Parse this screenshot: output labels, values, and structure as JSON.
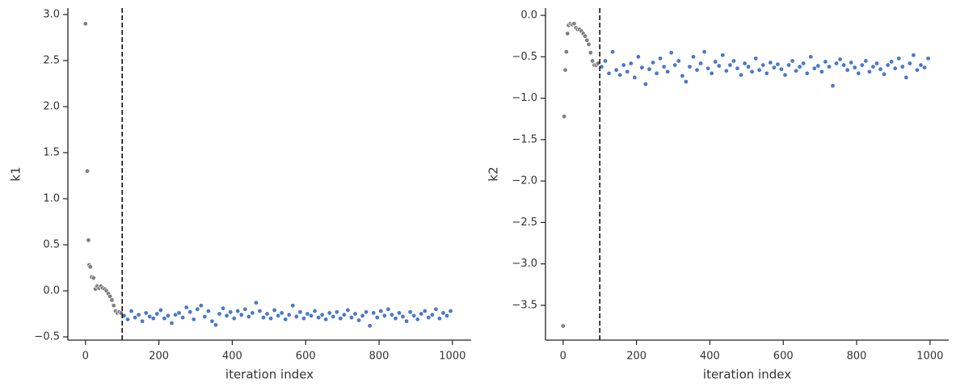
{
  "chart_data": [
    {
      "type": "scatter",
      "xlabel": "iteration index",
      "ylabel": "k1",
      "xlim": [
        -48,
        1051
      ],
      "ylim": [
        -0.535,
        3.07
      ],
      "xticks": [
        0,
        200,
        400,
        600,
        800,
        1000
      ],
      "yticks": [
        {
          "value": -0.5,
          "label": "−0.5"
        },
        {
          "value": 0,
          "label": "0.0"
        },
        0.5,
        {
          "value": 1,
          "label": "1.0"
        },
        1.5,
        {
          "value": 2,
          "label": "2.0"
        },
        2.5,
        {
          "value": 3,
          "label": "3.0"
        }
      ],
      "vline": 100,
      "vline_color": "#111111",
      "series": [
        {
          "color": "#7f7f7f",
          "x": [
            0,
            5,
            8,
            10,
            13,
            17,
            22,
            27,
            32,
            37,
            42,
            47,
            52,
            57,
            62,
            67,
            72,
            77,
            82,
            87,
            92,
            97
          ],
          "values": [
            2.9,
            1.3,
            0.55,
            0.28,
            0.26,
            0.15,
            0.14,
            0.02,
            0.05,
            0.03,
            0.05,
            0.03,
            0.02,
            0.0,
            -0.03,
            -0.06,
            -0.1,
            -0.16,
            -0.22,
            -0.24,
            -0.23,
            -0.24
          ]
        },
        {
          "color": "#4878cf",
          "x": [
            105,
            115,
            125,
            135,
            145,
            155,
            165,
            175,
            185,
            195,
            205,
            215,
            225,
            235,
            245,
            255,
            265,
            275,
            285,
            295,
            305,
            315,
            325,
            335,
            345,
            355,
            365,
            375,
            385,
            395,
            405,
            415,
            425,
            435,
            445,
            455,
            465,
            475,
            485,
            495,
            505,
            515,
            525,
            535,
            545,
            555,
            565,
            575,
            585,
            595,
            605,
            615,
            625,
            635,
            645,
            655,
            665,
            675,
            685,
            695,
            705,
            715,
            725,
            735,
            745,
            755,
            765,
            775,
            785,
            795,
            805,
            815,
            825,
            835,
            845,
            855,
            865,
            875,
            885,
            895,
            905,
            915,
            925,
            935,
            945,
            955,
            965,
            975,
            985,
            995
          ],
          "values": [
            -0.27,
            -0.31,
            -0.22,
            -0.29,
            -0.26,
            -0.33,
            -0.24,
            -0.28,
            -0.3,
            -0.25,
            -0.21,
            -0.3,
            -0.27,
            -0.35,
            -0.26,
            -0.24,
            -0.29,
            -0.18,
            -0.23,
            -0.31,
            -0.2,
            -0.16,
            -0.28,
            -0.22,
            -0.33,
            -0.37,
            -0.25,
            -0.19,
            -0.27,
            -0.23,
            -0.3,
            -0.22,
            -0.26,
            -0.2,
            -0.28,
            -0.24,
            -0.13,
            -0.22,
            -0.29,
            -0.25,
            -0.3,
            -0.21,
            -0.27,
            -0.24,
            -0.31,
            -0.26,
            -0.16,
            -0.28,
            -0.23,
            -0.3,
            -0.25,
            -0.27,
            -0.22,
            -0.29,
            -0.26,
            -0.31,
            -0.24,
            -0.28,
            -0.23,
            -0.3,
            -0.26,
            -0.21,
            -0.29,
            -0.25,
            -0.32,
            -0.27,
            -0.23,
            -0.38,
            -0.24,
            -0.29,
            -0.22,
            -0.27,
            -0.2,
            -0.26,
            -0.3,
            -0.24,
            -0.28,
            -0.33,
            -0.23,
            -0.27,
            -0.31,
            -0.25,
            -0.22,
            -0.29,
            -0.26,
            -0.2,
            -0.3,
            -0.24,
            -0.27,
            -0.22
          ]
        }
      ]
    },
    {
      "type": "scatter",
      "xlabel": "iteration index",
      "ylabel": "k2",
      "xlim": [
        -48,
        1051
      ],
      "ylim": [
        -3.92,
        0.088
      ],
      "xticks": [
        0,
        200,
        400,
        600,
        800,
        1000
      ],
      "yticks": [
        {
          "value": -3.5,
          "label": "−3.5"
        },
        {
          "value": -3,
          "label": "−3.0"
        },
        {
          "value": -2.5,
          "label": "−2.5"
        },
        {
          "value": -2,
          "label": "−2.0"
        },
        {
          "value": -1.5,
          "label": "−1.5"
        },
        {
          "value": -1,
          "label": "−1.0"
        },
        {
          "value": -0.5,
          "label": "−0.5"
        },
        {
          "value": 0,
          "label": "0.0"
        }
      ],
      "vline": 100,
      "vline_color": "#111111",
      "series": [
        {
          "color": "#7f7f7f",
          "x": [
            0,
            3,
            6,
            9,
            12,
            15,
            20,
            25,
            30,
            35,
            40,
            45,
            50,
            55,
            60,
            65,
            70,
            75,
            80,
            85,
            90,
            95
          ],
          "values": [
            -3.75,
            -1.22,
            -0.66,
            -0.44,
            -0.22,
            -0.12,
            -0.1,
            -0.11,
            -0.1,
            -0.15,
            -0.17,
            -0.17,
            -0.19,
            -0.22,
            -0.25,
            -0.3,
            -0.35,
            -0.45,
            -0.55,
            -0.6,
            -0.6,
            -0.58
          ]
        },
        {
          "color": "#4878cf",
          "x": [
            105,
            115,
            125,
            135,
            145,
            155,
            165,
            175,
            185,
            195,
            205,
            215,
            225,
            235,
            245,
            255,
            265,
            275,
            285,
            295,
            305,
            315,
            325,
            335,
            345,
            355,
            365,
            375,
            385,
            395,
            405,
            415,
            425,
            435,
            445,
            455,
            465,
            475,
            485,
            495,
            505,
            515,
            525,
            535,
            545,
            555,
            565,
            575,
            585,
            595,
            605,
            615,
            625,
            635,
            645,
            655,
            665,
            675,
            685,
            695,
            705,
            715,
            725,
            735,
            745,
            755,
            765,
            775,
            785,
            795,
            805,
            815,
            825,
            835,
            845,
            855,
            865,
            875,
            885,
            895,
            905,
            915,
            925,
            935,
            945,
            955,
            965,
            975,
            985,
            995
          ],
          "values": [
            -0.62,
            -0.55,
            -0.7,
            -0.44,
            -0.66,
            -0.72,
            -0.6,
            -0.68,
            -0.58,
            -0.75,
            -0.5,
            -0.63,
            -0.83,
            -0.65,
            -0.57,
            -0.7,
            -0.52,
            -0.62,
            -0.68,
            -0.45,
            -0.6,
            -0.55,
            -0.73,
            -0.8,
            -0.62,
            -0.5,
            -0.66,
            -0.58,
            -0.44,
            -0.64,
            -0.7,
            -0.56,
            -0.61,
            -0.48,
            -0.67,
            -0.6,
            -0.55,
            -0.64,
            -0.72,
            -0.58,
            -0.62,
            -0.68,
            -0.52,
            -0.66,
            -0.6,
            -0.7,
            -0.57,
            -0.63,
            -0.59,
            -0.65,
            -0.72,
            -0.6,
            -0.55,
            -0.67,
            -0.62,
            -0.58,
            -0.7,
            -0.5,
            -0.64,
            -0.61,
            -0.68,
            -0.56,
            -0.62,
            -0.85,
            -0.58,
            -0.53,
            -0.6,
            -0.66,
            -0.57,
            -0.63,
            -0.7,
            -0.6,
            -0.55,
            -0.68,
            -0.62,
            -0.58,
            -0.65,
            -0.71,
            -0.6,
            -0.56,
            -0.64,
            -0.52,
            -0.62,
            -0.75,
            -0.58,
            -0.48,
            -0.66,
            -0.6,
            -0.63,
            -0.52
          ]
        }
      ]
    }
  ]
}
